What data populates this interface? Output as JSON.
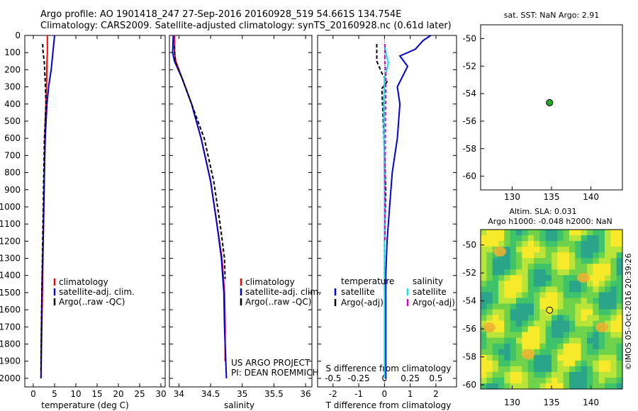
{
  "figure": {
    "title_line1": "Argo profile: AO 1901418_247 27-Sep-2016 20160928_519 54.661S 134.754E",
    "title_line2": "Climatology: CARS2009. Satellite-adjusted climatology: synTS_20160928.nc (0.61d later)",
    "watermark": "©IMOS 05-Oct-2016 20:39:26",
    "project_line1": "US ARGO PROJECT",
    "project_line2": "PI: DEAN ROEMMICH",
    "colors": {
      "climatology": "#ff0000",
      "satellite": "#0000dd",
      "argo": "#000000",
      "satellite_diff": "#00e5ee",
      "argo_adj_s": "#dd00dd",
      "float_marker": "#22aa22"
    }
  },
  "chart_data": [
    {
      "type": "line",
      "name": "temperature_profile",
      "xlabel": "temperature (deg C)",
      "ylabel": "",
      "xlim": [
        -2,
        31
      ],
      "ylim": [
        2050,
        0
      ],
      "xticks": [
        0,
        5,
        10,
        15,
        20,
        25,
        30
      ],
      "yticks": [
        0,
        100,
        200,
        300,
        400,
        500,
        600,
        700,
        800,
        900,
        1000,
        1100,
        1200,
        1300,
        1400,
        1500,
        1600,
        1700,
        1800,
        1900,
        2000
      ],
      "legend": [
        "climatology",
        "satellite-adj. clim.",
        "Argo(..raw -QC)"
      ],
      "series": [
        {
          "name": "climatology",
          "color": "#ff0000",
          "dash": "",
          "x": [
            3.3,
            3.3,
            3.2,
            3.1,
            2.8,
            2.6,
            2.4,
            2.2,
            2.0,
            1.8
          ],
          "y": [
            0,
            100,
            150,
            300,
            500,
            800,
            1100,
            1400,
            1700,
            2000
          ]
        },
        {
          "name": "satellite-adj. clim.",
          "color": "#0000dd",
          "dash": "",
          "x": [
            5.0,
            4.8,
            4.6,
            4.2,
            3.6,
            3.2,
            2.8,
            2.6,
            2.4,
            2.1,
            1.9,
            1.8
          ],
          "y": [
            0,
            50,
            100,
            200,
            300,
            400,
            600,
            800,
            1100,
            1400,
            1700,
            2000
          ]
        },
        {
          "name": "Argo(..raw -QC)",
          "color": "#000000",
          "dash": "5,3",
          "x": [
            2.2,
            2.3,
            2.6,
            3.0,
            2.6,
            2.4,
            2.2,
            2.0,
            1.8
          ],
          "y": [
            50,
            100,
            160,
            400,
            600,
            900,
            1200,
            1500,
            1960
          ]
        }
      ]
    },
    {
      "type": "line",
      "name": "salinity_profile",
      "xlabel": "salinity",
      "ylabel": "",
      "xlim": [
        33.85,
        36.1
      ],
      "ylim": [
        2050,
        0
      ],
      "xticks": [
        34,
        34.5,
        35,
        35.5,
        36
      ],
      "yticks": [
        0,
        100,
        200,
        300,
        400,
        500,
        600,
        700,
        800,
        900,
        1000,
        1100,
        1200,
        1300,
        1400,
        1500,
        1600,
        1700,
        1800,
        1900,
        2000
      ],
      "legend": [
        "climatology",
        "satellite-adj. clim.",
        "Argo(..raw -QC)"
      ],
      "series": [
        {
          "name": "climatology",
          "color": "#ff0000",
          "dash": "",
          "x": [
            33.93,
            33.93,
            33.95,
            34.05,
            34.2,
            34.35,
            34.5,
            34.6,
            34.68,
            34.72,
            34.73,
            34.73
          ],
          "y": [
            0,
            100,
            150,
            250,
            400,
            600,
            850,
            1100,
            1300,
            1500,
            1700,
            1900
          ]
        },
        {
          "name": "satellite-adj. clim.",
          "color": "#0000dd",
          "dash": "",
          "x": [
            33.91,
            33.9,
            33.93,
            34.05,
            34.2,
            34.35,
            34.5,
            34.6,
            34.67,
            34.71,
            34.72,
            34.74,
            34.75
          ],
          "y": [
            0,
            100,
            150,
            250,
            400,
            600,
            850,
            1100,
            1300,
            1500,
            1700,
            1900,
            2000
          ]
        },
        {
          "name": "Argo(..raw -QC)",
          "color": "#000000",
          "dash": "5,3",
          "x": [
            33.93,
            33.94,
            34.05,
            34.2,
            34.4,
            34.55,
            34.65,
            34.72,
            34.73
          ],
          "y": [
            60,
            150,
            250,
            400,
            600,
            850,
            1100,
            1300,
            1420
          ]
        }
      ]
    },
    {
      "type": "line",
      "name": "difference_profile",
      "xlabel": "T difference from climatology",
      "xlabel_top": "S difference from climatology",
      "xlim": [
        -2.6,
        2.8
      ],
      "ylim": [
        2050,
        0
      ],
      "xticks": [
        -2,
        -1,
        0,
        1,
        2
      ],
      "xticks_top": [
        -0.5,
        -0.25,
        0,
        0.25,
        0.5
      ],
      "xlim_top": [
        -0.65,
        0.7
      ],
      "legend_headers": [
        "temperature",
        "salinity"
      ],
      "legend_left": [
        "satellite",
        "Argo(-adj)"
      ],
      "legend_right": [
        "satellite",
        "Argo(-adj)"
      ],
      "series": [
        {
          "name": "T satellite",
          "color": "#0000dd",
          "dash": "",
          "x": [
            1.8,
            1.5,
            1.2,
            0.6,
            0.9,
            0.5,
            0.6,
            0.5,
            0.3,
            0.2,
            0.1,
            0.05,
            0.05,
            0.05,
            0.05,
            0.05
          ],
          "y": [
            0,
            30,
            80,
            120,
            180,
            300,
            400,
            600,
            800,
            1000,
            1200,
            1400,
            1600,
            1800,
            1900,
            2000
          ]
        },
        {
          "name": "T Argo(-adj)",
          "color": "#000000",
          "dash": "5,3",
          "x": [
            -0.3,
            -0.3,
            -0.1,
            0.1,
            -0.1,
            -0.05,
            0.0,
            0.05,
            0.0,
            0.0
          ],
          "y": [
            50,
            150,
            220,
            270,
            310,
            500,
            700,
            900,
            1200,
            1500
          ]
        },
        {
          "name": "S satellite",
          "color": "#00e5ee",
          "dash": "",
          "x": [
            0.0,
            0.05,
            0.15,
            0.0,
            -0.03,
            -0.02,
            0.0,
            0.0,
            0.0,
            0.0
          ],
          "y": [
            50,
            100,
            160,
            250,
            400,
            600,
            900,
            1200,
            1600,
            2000
          ]
        },
        {
          "name": "S Argo(-adj)",
          "color": "#dd00dd",
          "dash": "5,3",
          "x": [
            0.02,
            0.02,
            0.05,
            0.04,
            0.03,
            0.02,
            0.02
          ],
          "y": [
            50,
            150,
            250,
            400,
            600,
            900,
            1200
          ]
        }
      ]
    },
    {
      "type": "scatter",
      "name": "sst_map",
      "title": "sat. SST: NaN Argo: 2.91",
      "xlim": [
        126,
        144
      ],
      "ylim": [
        -61,
        -49
      ],
      "xticks": [
        130,
        135,
        140
      ],
      "yticks": [
        -50,
        -52,
        -54,
        -56,
        -58,
        -60
      ],
      "points": [
        {
          "x": 134.754,
          "y": -54.661
        }
      ]
    },
    {
      "type": "heatmap",
      "name": "sla_map",
      "title_line1": "Altim. SLA: 0.031",
      "title_line2": "Argo h1000: -0.048 h2000: NaN",
      "xlim": [
        126,
        144
      ],
      "ylim": [
        -60.3,
        -48.9
      ],
      "xticks": [
        130,
        135,
        140
      ],
      "yticks": [
        -50,
        -52,
        -54,
        -56,
        -58,
        -60
      ],
      "points": [
        {
          "x": 134.754,
          "y": -54.661
        }
      ]
    }
  ]
}
